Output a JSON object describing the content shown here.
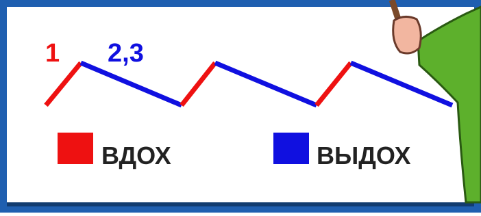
{
  "phase_labels": [
    "1",
    "2,3"
  ],
  "legend": [
    {
      "label": "ВДОХ"
    },
    {
      "label": "ВЫДОХ"
    }
  ]
}
